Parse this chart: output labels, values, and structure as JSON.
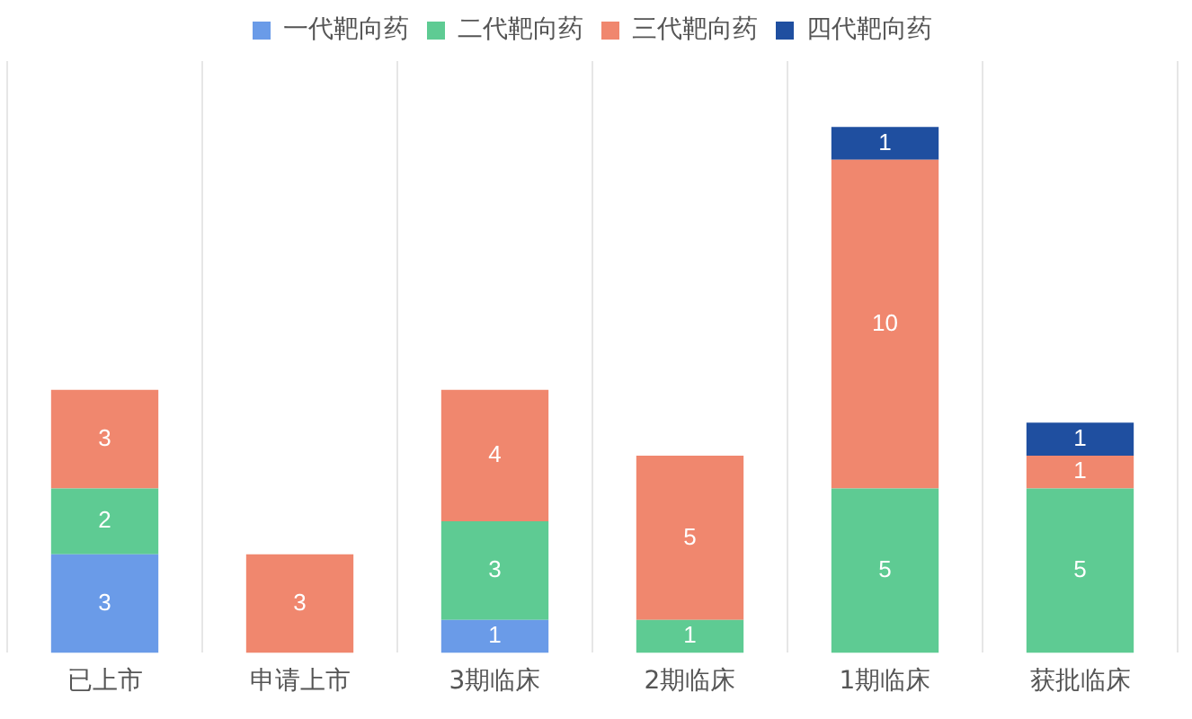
{
  "chart_data": {
    "type": "bar",
    "stacked": true,
    "categories": [
      "已上市",
      "申请上市",
      "3期临床",
      "2期临床",
      "1期临床",
      "获批临床"
    ],
    "series": [
      {
        "name": "一代靶向药",
        "color": "#6a9be8",
        "values": [
          3,
          null,
          1,
          null,
          null,
          null
        ]
      },
      {
        "name": "二代靶向药",
        "color": "#5ecb93",
        "values": [
          2,
          null,
          3,
          1,
          5,
          5
        ]
      },
      {
        "name": "三代靶向药",
        "color": "#f0876e",
        "values": [
          3,
          3,
          4,
          5,
          10,
          1
        ]
      },
      {
        "name": "四代靶向药",
        "color": "#1f4fa0",
        "values": [
          null,
          null,
          null,
          null,
          1,
          1
        ]
      }
    ],
    "ylim": [
      0,
      18
    ],
    "tick_labels": "x",
    "grid": "x",
    "legend": "top",
    "data_labels": true
  }
}
